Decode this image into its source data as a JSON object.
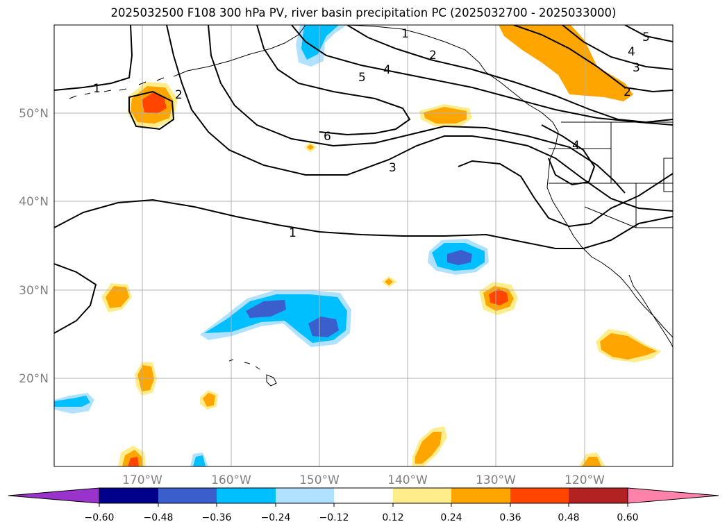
{
  "title": "2025032500 F108 300 hPa PV, river basin precipitation PC (2025032700 - 2025033000)",
  "map": {
    "latitude_labels": [
      "50°N",
      "40°N",
      "30°N",
      "20°N"
    ],
    "longitude_labels": [
      "170°W",
      "160°W",
      "150°W",
      "140°W",
      "130°W",
      "120°W"
    ],
    "extent": {
      "lon_min": -180,
      "lon_max": -110,
      "lat_min": 10,
      "lat_max": 60
    },
    "gridlines": true
  },
  "pv_contours": {
    "levels": [
      1,
      2,
      3,
      4,
      5,
      6
    ],
    "labels": [
      "1",
      "2",
      "5",
      "4",
      "6",
      "3",
      "1",
      "1",
      "2",
      "3",
      "4",
      "5",
      "2",
      "4"
    ],
    "color": "#000000"
  },
  "precip_pc": {
    "colorbar_labels": [
      "−0.60",
      "−0.48",
      "−0.36",
      "−0.24",
      "−0.12",
      "0.12",
      "0.24",
      "0.36",
      "0.48",
      "0.60"
    ],
    "colorbar_colors": [
      "#9933cc",
      "#00008b",
      "#3a5fcd",
      "#00bfff",
      "#b0e2ff",
      "#ffffff",
      "#ffec8b",
      "#ffa500",
      "#ff4500",
      "#b22222",
      "#ff82ab"
    ],
    "extend": "both"
  },
  "colors": {
    "pos_low": "#ffec8b",
    "pos_mid": "#ffa500",
    "pos_high": "#ff4500",
    "neg_low": "#b0e2ff",
    "neg_mid": "#00bfff",
    "neg_high": "#3a5fcd",
    "grid": "#b0b0b0",
    "tick_label": "#808080"
  }
}
